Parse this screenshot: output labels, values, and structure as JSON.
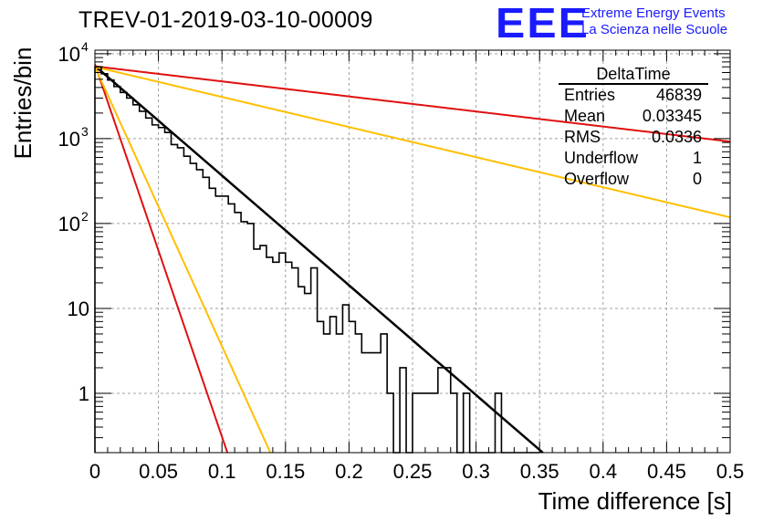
{
  "header": {
    "title": "TREV-01-2019-03-10-00009",
    "logo_text": "EEE",
    "logo_line1": "Extreme Energy Events",
    "logo_line2": "La Scienza nelle Scuole"
  },
  "colors": {
    "black": "#000000",
    "red": "#e01010",
    "orange": "#ffbf00",
    "grid": "#a0a0a0",
    "logo_blue": "#1a1aff"
  },
  "chart_data": {
    "type": "line",
    "xlabel": "Time difference [s]",
    "ylabel": "Entries/bin",
    "xlim": [
      0,
      0.5
    ],
    "ylim": [
      0.2,
      11000
    ],
    "y_scale": "log",
    "grid": true,
    "x_ticks": [
      "0",
      "0.05",
      "0.1",
      "0.15",
      "0.2",
      "0.25",
      "0.3",
      "0.35",
      "0.4",
      "0.45",
      "0.5"
    ],
    "x_tick_values": [
      0,
      0.05,
      0.1,
      0.15,
      0.2,
      0.25,
      0.3,
      0.35,
      0.4,
      0.45,
      0.5
    ],
    "y_tick_labels": [
      {
        "base": "10",
        "exp": "4",
        "value": 10000
      },
      {
        "base": "10",
        "exp": "3",
        "value": 1000
      },
      {
        "base": "10",
        "exp": "2",
        "value": 100
      },
      {
        "base": "10",
        "exp": "",
        "value": 10
      },
      {
        "base": "1",
        "exp": "",
        "value": 1
      }
    ],
    "histogram": {
      "name": "DeltaTime",
      "bin_width": 0.005,
      "values": [
        7000,
        5800,
        4900,
        4100,
        3500,
        3000,
        2500,
        2100,
        1750,
        1450,
        1350,
        1180,
        850,
        780,
        620,
        510,
        430,
        350,
        260,
        210,
        210,
        170,
        135,
        105,
        100,
        50,
        55,
        40,
        35,
        45,
        35,
        30,
        18,
        15,
        30,
        7,
        5,
        8,
        5,
        11,
        7,
        5,
        3,
        3,
        3,
        5,
        1,
        0,
        2,
        0,
        1,
        1,
        1,
        1,
        2,
        2,
        1,
        0,
        1,
        0,
        0,
        0,
        0,
        1,
        0,
        0,
        0,
        0,
        0,
        0
      ]
    },
    "curves": [
      {
        "color": "black",
        "y0": 7200,
        "tau": 0.0336,
        "x_range": [
          0,
          0.5
        ]
      },
      {
        "color": "red",
        "y0": 7500,
        "tau": 0.0099,
        "x_range": [
          0,
          0.5
        ]
      },
      {
        "color": "orange",
        "y0": 7000,
        "tau": 0.0132,
        "x_range": [
          0,
          0.5
        ]
      },
      {
        "color": "red",
        "y0": 7100,
        "tau": 0.245,
        "x_range": [
          0,
          0.5
        ]
      },
      {
        "color": "orange",
        "y0": 7000,
        "tau": 0.1225,
        "x_range": [
          0,
          0.5
        ]
      }
    ],
    "stats_box": {
      "title": "DeltaTime",
      "rows": [
        {
          "label": "Entries",
          "value": "46839"
        },
        {
          "label": "Mean",
          "value": "0.03345"
        },
        {
          "label": "RMS",
          "value": "0.0336"
        },
        {
          "label": "Underflow",
          "value": "1"
        },
        {
          "label": "Overflow",
          "value": "0"
        }
      ]
    }
  }
}
